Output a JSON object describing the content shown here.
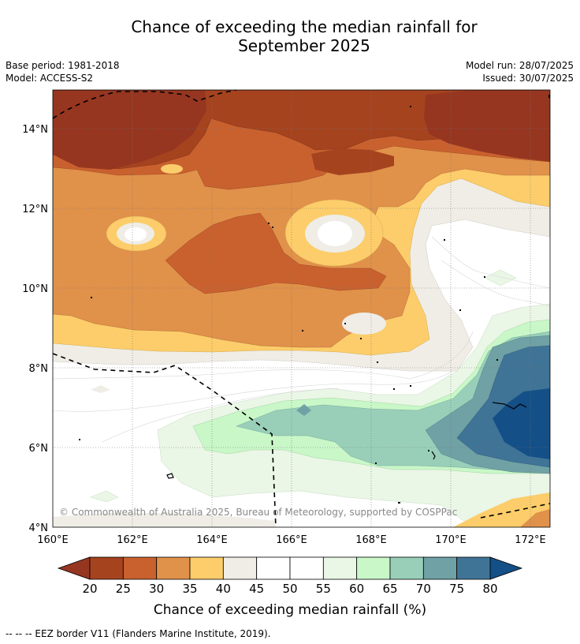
{
  "title_line1": "Chance of exceeding the median rainfall for",
  "title_line2": "September 2025",
  "meta": {
    "base_period": "Base period: 1981-2018",
    "model": "Model: ACCESS-S2",
    "model_run": "Model run: 28/07/2025",
    "issued": "Issued: 30/07/2025"
  },
  "map": {
    "lat_labels": [
      "14°N",
      "12°N",
      "10°N",
      "8°N",
      "6°N",
      "4°N"
    ],
    "lon_labels": [
      "160°E",
      "162°E",
      "164°E",
      "166°E",
      "168°E",
      "170°E",
      "172°E"
    ],
    "copyright": "© Commonwealth of Australia 2025, Bureau of Meteorology, supported by COSPPac"
  },
  "legend": {
    "ticks": [
      "20",
      "25",
      "30",
      "35",
      "40",
      "45",
      "50",
      "55",
      "60",
      "65",
      "70",
      "75",
      "80"
    ],
    "label": "Chance of exceeding median rainfall (%)",
    "colors": [
      "#a5431f",
      "#c9612f",
      "#e0914a",
      "#fccd6a",
      "#efede6",
      "#ffffff",
      "#ffffff",
      "#eaf6e6",
      "#c9f7c8",
      "#99cfb9",
      "#6fa1a5",
      "#3f7497"
    ],
    "low_color": "#963620",
    "high_color": "#144f87"
  },
  "footnote": "--  --  -- EEZ border V11 (Flanders Marine Institute, 2019)."
}
